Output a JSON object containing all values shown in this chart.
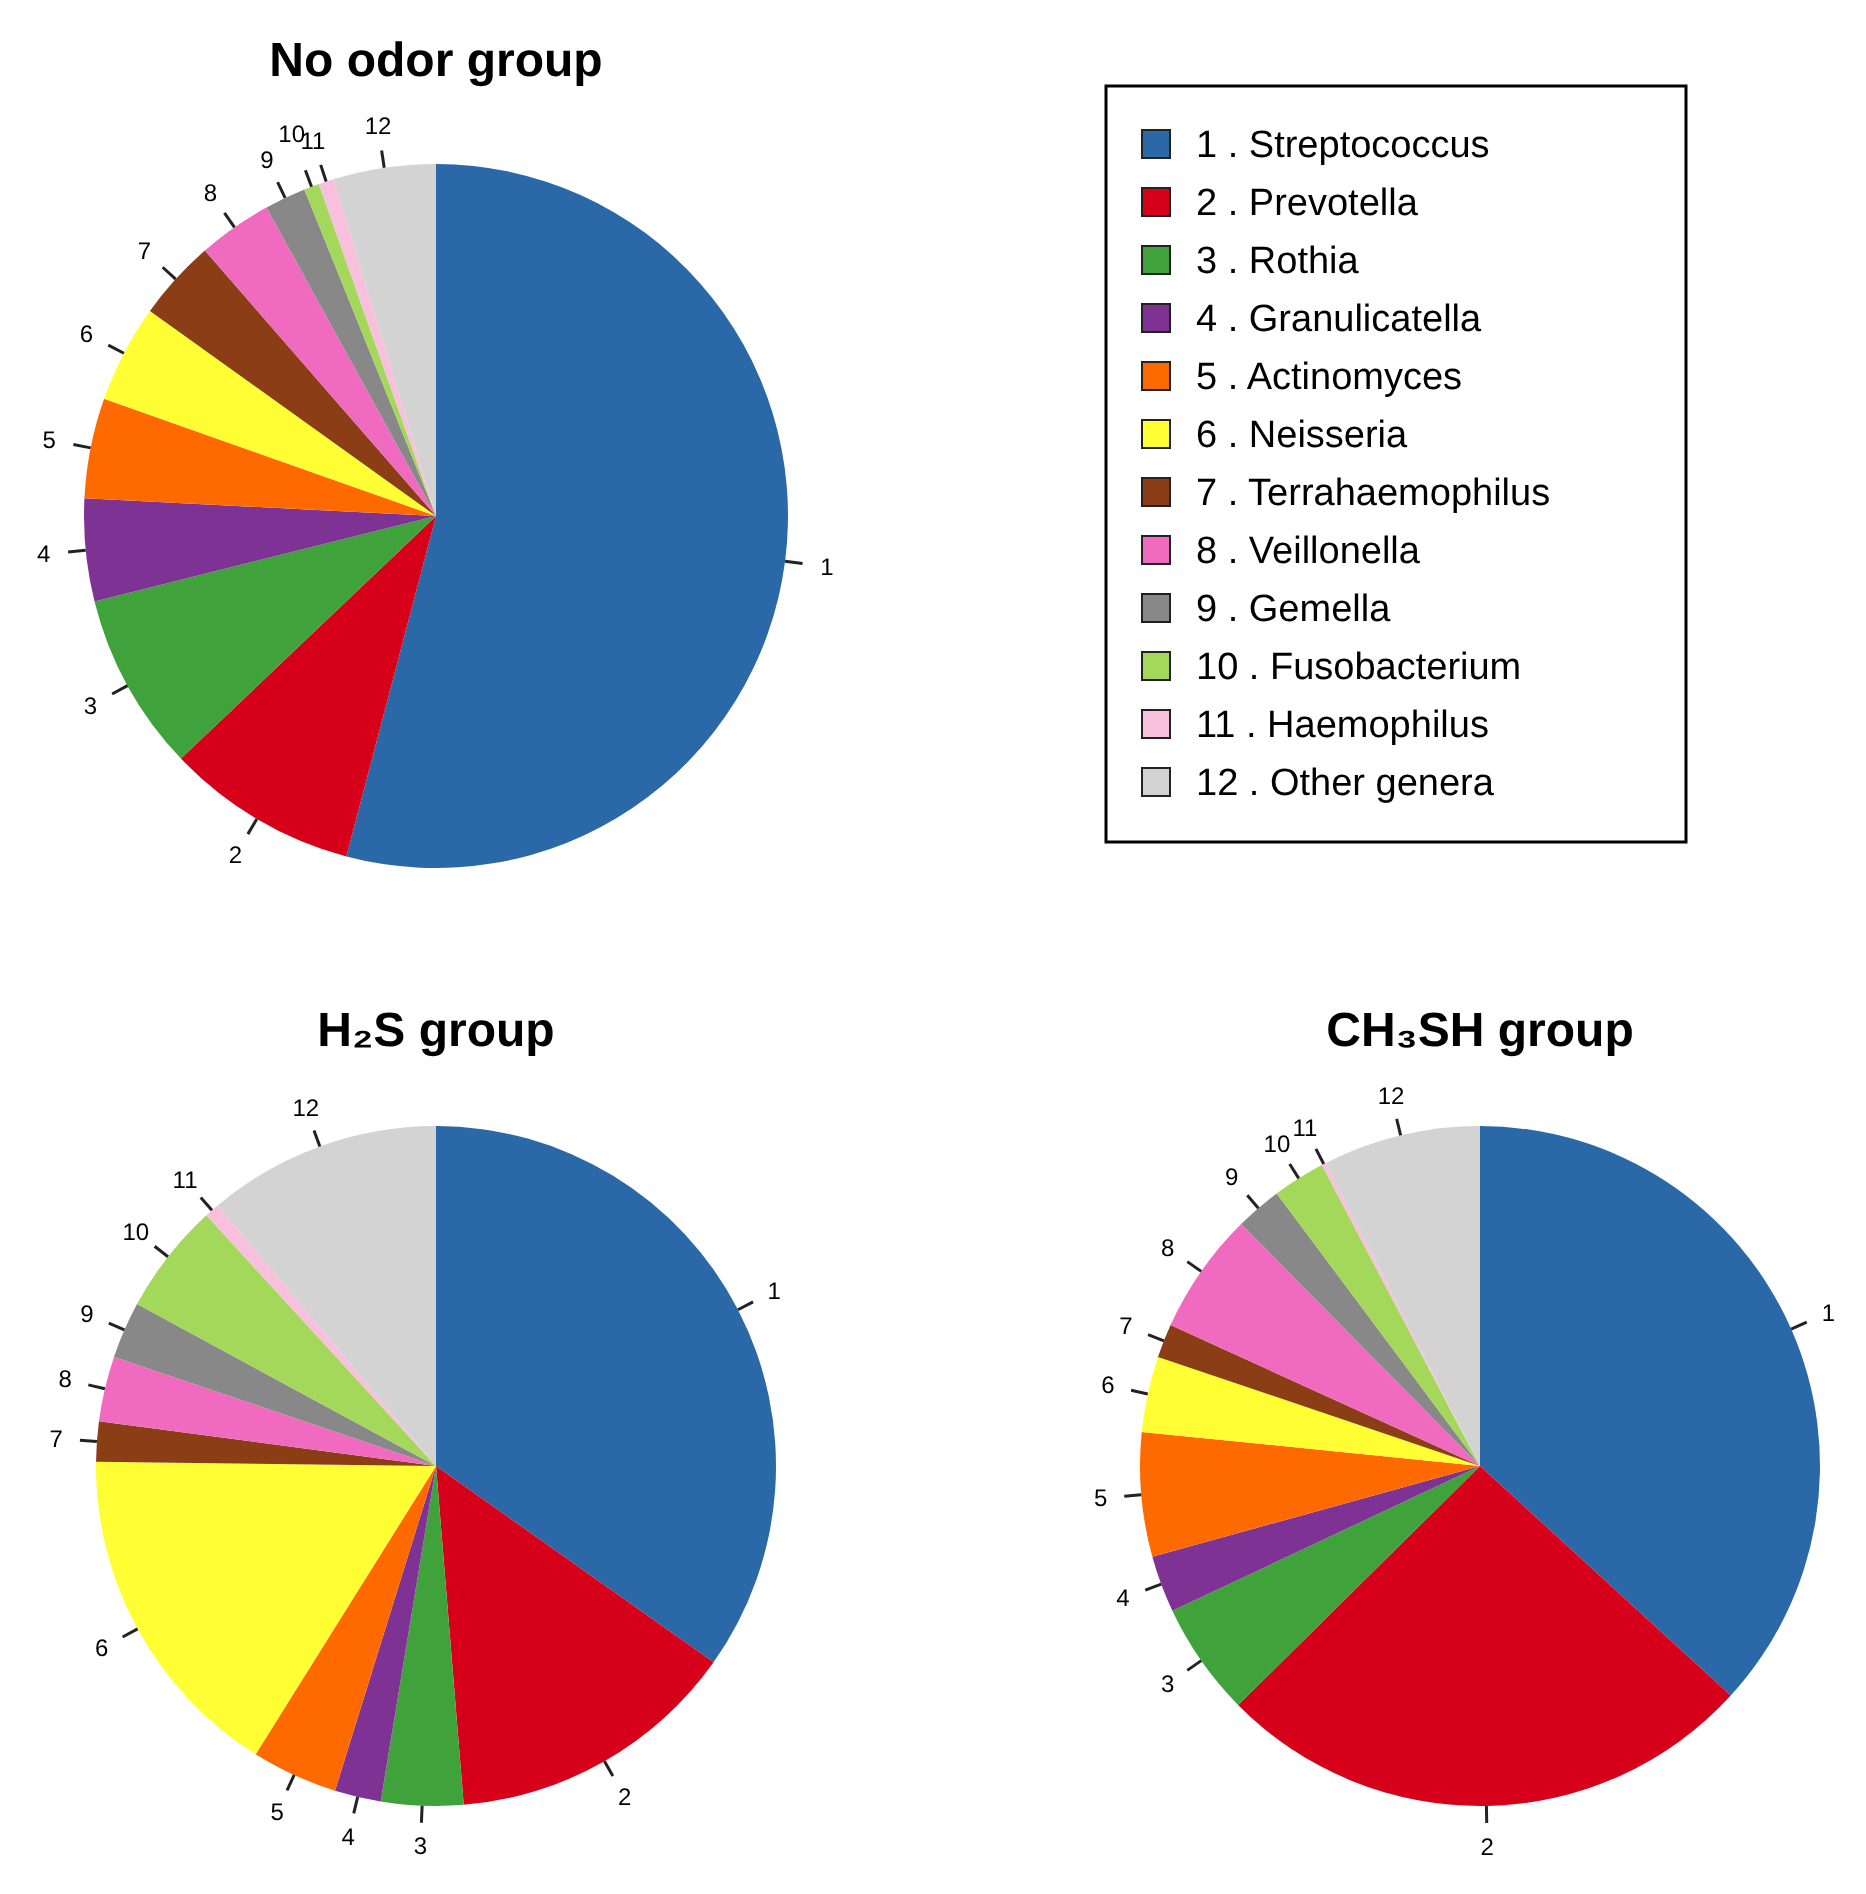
{
  "chart_data": [
    {
      "type": "pie",
      "title": "No odor group",
      "categories": [
        "1",
        "2",
        "3",
        "4",
        "5",
        "6",
        "7",
        "8",
        "9",
        "10",
        "11",
        "12"
      ],
      "values": [
        54.1,
        8.8,
        8.2,
        4.7,
        4.6,
        4.5,
        3.7,
        3.4,
        1.9,
        0.7,
        0.7,
        4.7
      ],
      "colors": [
        "#2b68a8",
        "#d7001b",
        "#3fa23a",
        "#7e3294",
        "#ff6a00",
        "#ffff33",
        "#8b3e16",
        "#f06bbf",
        "#888888",
        "#a3d85a",
        "#f9c0de",
        "#d3d3d3"
      ]
    },
    {
      "type": "other",
      "categories": [
        "1 . Streptococcus",
        "2 . Prevotella",
        "3 . Rothia",
        "4 . Granulicatella",
        "5 . Actinomyces",
        "6 . Neisseria",
        "7 . Terrahaemophilus",
        "8 . Veillonella",
        "9 . Gemella",
        "10 . Fusobacterium",
        "11 . Haemophilus",
        "12 . Other genera"
      ],
      "colors": [
        "#2b68a8",
        "#d7001b",
        "#3fa23a",
        "#7e3294",
        "#ff6a00",
        "#ffff33",
        "#8b3e16",
        "#f06bbf",
        "#888888",
        "#a3d85a",
        "#f9c0de",
        "#d3d3d3"
      ]
    },
    {
      "type": "pie",
      "title": "H₂S group",
      "categories": [
        "1",
        "2",
        "3",
        "4",
        "5",
        "6",
        "7",
        "8",
        "9",
        "10",
        "11",
        "12"
      ],
      "values": [
        34.8,
        13.9,
        3.9,
        2.2,
        4.1,
        16.3,
        1.9,
        3.1,
        2.7,
        5.3,
        0.7,
        11.1
      ],
      "colors": [
        "#2b68a8",
        "#d7001b",
        "#3fa23a",
        "#7e3294",
        "#ff6a00",
        "#ffff33",
        "#8b3e16",
        "#f06bbf",
        "#888888",
        "#a3d85a",
        "#f9c0de",
        "#d3d3d3"
      ]
    },
    {
      "type": "pie",
      "title": "CH₃SH group",
      "categories": [
        "1",
        "2",
        "3",
        "4",
        "5",
        "6",
        "7",
        "8",
        "9",
        "10",
        "11",
        "12"
      ],
      "values": [
        36.8,
        25.8,
        5.4,
        2.7,
        5.9,
        3.6,
        1.6,
        5.8,
        2.2,
        2.5,
        0.2,
        7.5
      ],
      "colors": [
        "#2b68a8",
        "#d7001b",
        "#3fa23a",
        "#7e3294",
        "#ff6a00",
        "#ffff33",
        "#8b3e16",
        "#f06bbf",
        "#888888",
        "#a3d85a",
        "#f9c0de",
        "#d3d3d3"
      ]
    }
  ]
}
